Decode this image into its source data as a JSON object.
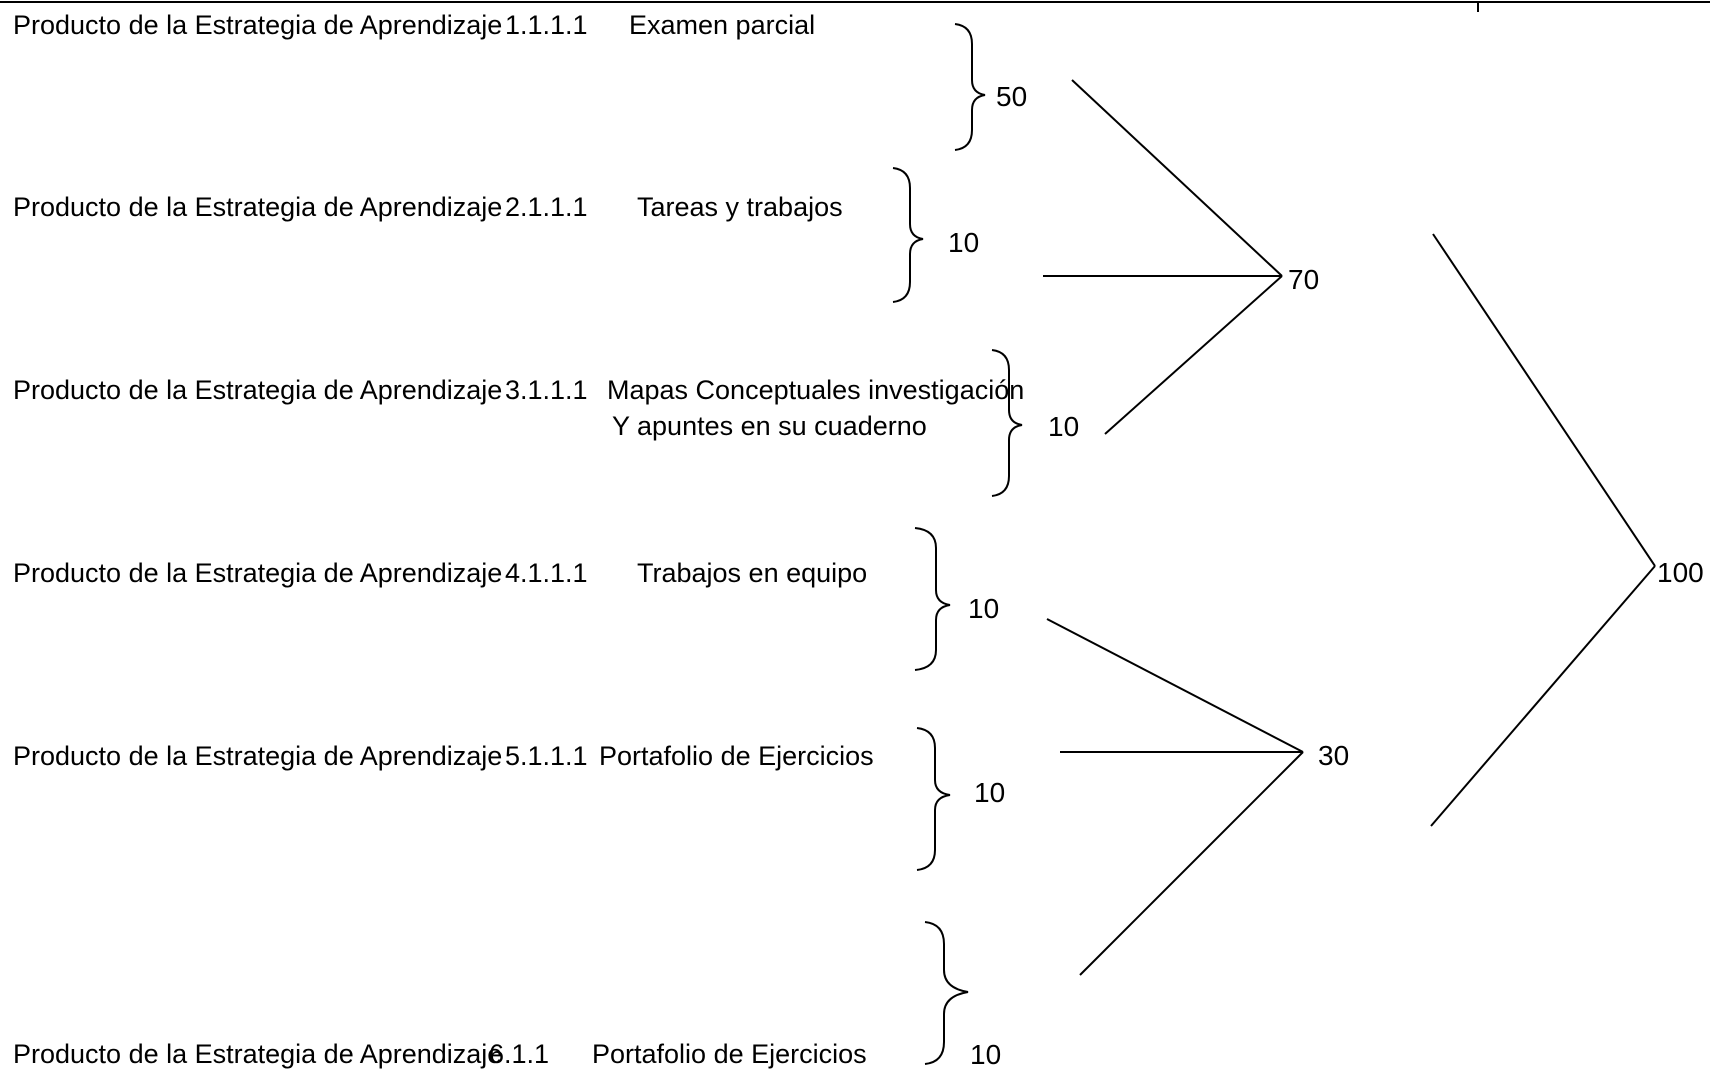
{
  "products": [
    {
      "prefix": "Producto de la Estrategia de Aprendizaje",
      "code": "1.1.1.1",
      "activity": "Examen parcial",
      "activity_line2": "",
      "value": "50"
    },
    {
      "prefix": "Producto de la Estrategia de Aprendizaje",
      "code": "2.1.1.1",
      "activity": "Tareas y trabajos",
      "activity_line2": "",
      "value": "10"
    },
    {
      "prefix": "Producto de la Estrategia de Aprendizaje",
      "code": "3.1.1.1",
      "activity": "Mapas Conceptuales investigación",
      "activity_line2": "Y apuntes en su cuaderno",
      "value": "10"
    },
    {
      "prefix": "Producto de la Estrategia de Aprendizaje",
      "code": "4.1.1.1",
      "activity": "Trabajos en equipo",
      "activity_line2": "",
      "value": "10"
    },
    {
      "prefix": "Producto de la Estrategia de Aprendizaje",
      "code": "5.1.1.1",
      "activity": "Portafolio de Ejercicios",
      "activity_line2": "",
      "value": "10"
    },
    {
      "prefix": "Producto de la Estrategia de Aprendizaje",
      "code": "6.1.1",
      "activity": "Portafolio de Ejercicios",
      "activity_line2": "",
      "value": "10"
    }
  ],
  "subtotals": [
    {
      "value": "70",
      "sums_products": [
        1,
        2,
        3
      ]
    },
    {
      "value": "30",
      "sums_products": [
        4,
        5,
        6
      ]
    }
  ],
  "total": {
    "value": "100",
    "sums_subtotals": [
      1,
      2
    ]
  },
  "colors": {
    "ink": "#000000",
    "background": "#ffffff"
  }
}
